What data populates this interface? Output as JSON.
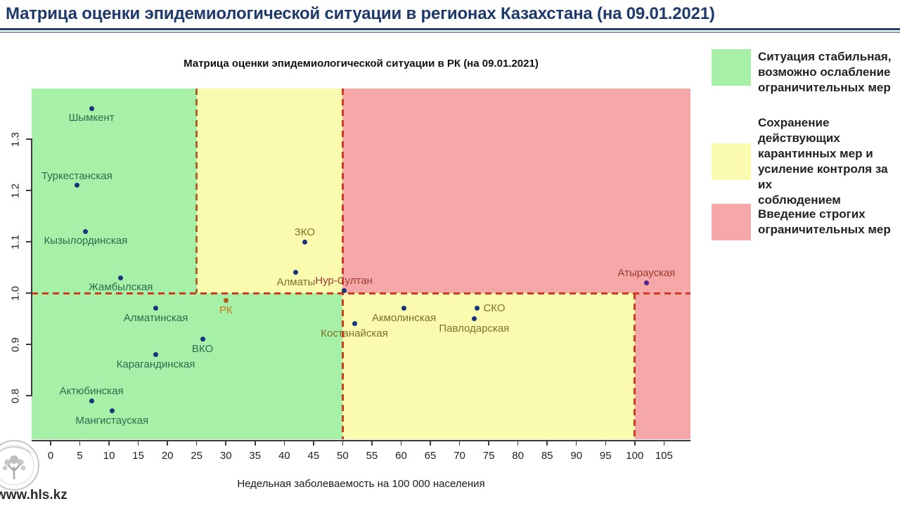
{
  "page": {
    "title": "Матрица оценки эпидемиологической ситуации в регионах Казахстана (на 09.01.2021)",
    "watermark": "www.hls.kz"
  },
  "chart_data": {
    "type": "scatter",
    "title": "Матрица оценки эпидемиологической ситуации в РК (на 09.01.2021)",
    "xlabel": "Недельная заболеваемость на 100 000 населения",
    "ylabel": "",
    "xlim": [
      0,
      105
    ],
    "ylim": [
      0.77,
      1.36
    ],
    "grid": false,
    "x_ticks": [
      0,
      5,
      10,
      15,
      20,
      25,
      30,
      35,
      40,
      45,
      50,
      55,
      60,
      65,
      70,
      75,
      80,
      85,
      90,
      95,
      100,
      105
    ],
    "y_ticks": [
      0.8,
      0.9,
      1.0,
      1.1,
      1.2,
      1.3
    ],
    "thresholds": {
      "r_critical_line": 1.0,
      "x_green_to_yellow_above_line": 25,
      "x_yellow_to_red_above_line": 50,
      "x_green_to_yellow_below_line": 50,
      "x_yellow_to_red_below_line": 100
    },
    "points": [
      {
        "label": "Шымкент",
        "x": 7,
        "y": 1.36,
        "label_pos": "below",
        "zone": "green"
      },
      {
        "label": "Туркестанская",
        "x": 4.5,
        "y": 1.21,
        "label_pos": "above",
        "zone": "green"
      },
      {
        "label": "Кызылординская",
        "x": 6,
        "y": 1.12,
        "label_pos": "below",
        "zone": "green"
      },
      {
        "label": "Жамбылская",
        "x": 12,
        "y": 1.03,
        "label_pos": "below",
        "zone": "green"
      },
      {
        "label": "Алматинская",
        "x": 18,
        "y": 0.97,
        "label_pos": "below",
        "zone": "green"
      },
      {
        "label": "ВКО",
        "x": 26,
        "y": 0.91,
        "label_pos": "below",
        "zone": "green"
      },
      {
        "label": "Карагандинская",
        "x": 18,
        "y": 0.88,
        "label_pos": "below",
        "zone": "green"
      },
      {
        "label": "Актюбинская",
        "x": 7,
        "y": 0.79,
        "label_pos": "above",
        "zone": "green"
      },
      {
        "label": "Мангистауская",
        "x": 10.5,
        "y": 0.77,
        "label_pos": "below",
        "zone": "green"
      },
      {
        "label": "РК",
        "x": 30,
        "y": 0.985,
        "label_pos": "below",
        "zone": "green",
        "dot_color": "#b05c15",
        "label_color": "#c8791c"
      },
      {
        "label": "Алматы",
        "x": 42,
        "y": 1.04,
        "label_pos": "below",
        "zone": "yellow"
      },
      {
        "label": "ЗКО",
        "x": 43.5,
        "y": 1.1,
        "label_pos": "above",
        "zone": "yellow"
      },
      {
        "label": "Нур-Султан",
        "x": 50.2,
        "y": 1.005,
        "label_pos": "above",
        "zone": "red"
      },
      {
        "label": "Костанайская",
        "x": 52,
        "y": 0.94,
        "label_pos": "below",
        "zone": "yellow"
      },
      {
        "label": "Акмолинская",
        "x": 60.5,
        "y": 0.97,
        "label_pos": "below",
        "zone": "yellow"
      },
      {
        "label": "СКО",
        "x": 73,
        "y": 0.97,
        "label_pos": "right",
        "zone": "yellow"
      },
      {
        "label": "Павлодарская",
        "x": 72.5,
        "y": 0.95,
        "label_pos": "below",
        "zone": "yellow"
      },
      {
        "label": "Атырауская",
        "x": 102,
        "y": 1.02,
        "label_pos": "above",
        "zone": "red",
        "dot_color": "#50278f"
      }
    ]
  },
  "legend": {
    "items": [
      {
        "color": "#a7f0a7",
        "lines": [
          "Ситуация стабильная,",
          "возможно ослабление",
          "ограничительных мер"
        ]
      },
      {
        "color": "#fbfbb0",
        "lines": [
          "Сохранение действующих",
          "карантинных мер и",
          "усиление контроля за их",
          "соблюдением"
        ]
      },
      {
        "color": "#f6a8a8",
        "lines": [
          "Введение строгих",
          "ограничительных мер"
        ]
      }
    ]
  },
  "colors": {
    "zone_green": "#a7f0a7",
    "zone_yellow": "#fbfbb0",
    "zone_red": "#f6a8a8",
    "dot_default": "#17347c",
    "label_green": "#2f6b4f",
    "label_yellow": "#7c7226",
    "label_red": "#9c3a30",
    "dash_red": "#cf3b22",
    "dash_orange": "#a8652a",
    "title_navy": "#1d3a6b"
  }
}
